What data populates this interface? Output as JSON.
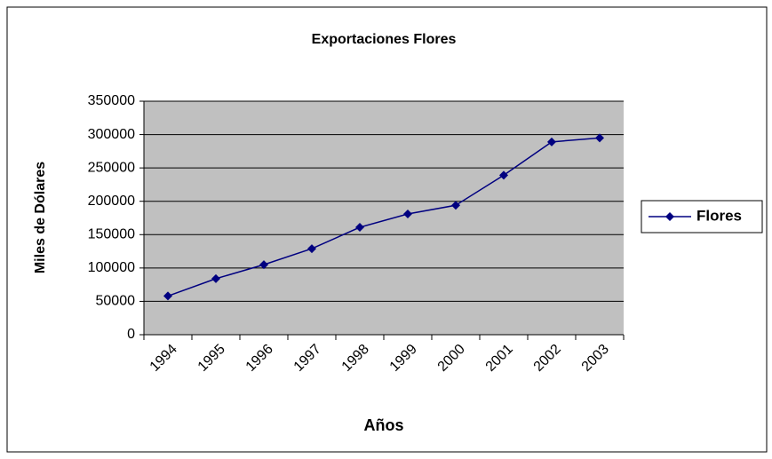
{
  "chart_data": {
    "type": "line",
    "title": "Exportaciones Flores",
    "x_label": "Años",
    "y_label": "Miles de Dólares",
    "categories": [
      "1994",
      "1995",
      "1996",
      "1997",
      "1998",
      "1999",
      "2000",
      "2001",
      "2002",
      "2003"
    ],
    "series": [
      {
        "name": "Flores",
        "color": "#000080",
        "values": [
          58000,
          84000,
          105000,
          129000,
          161000,
          181000,
          194000,
          239000,
          289000,
          295000
        ]
      }
    ],
    "ylim": [
      0,
      350000
    ],
    "yticks": [
      0,
      50000,
      100000,
      150000,
      200000,
      250000,
      300000,
      350000
    ],
    "grid": true,
    "legend": "right",
    "plot_background": "#c0c0c0"
  }
}
